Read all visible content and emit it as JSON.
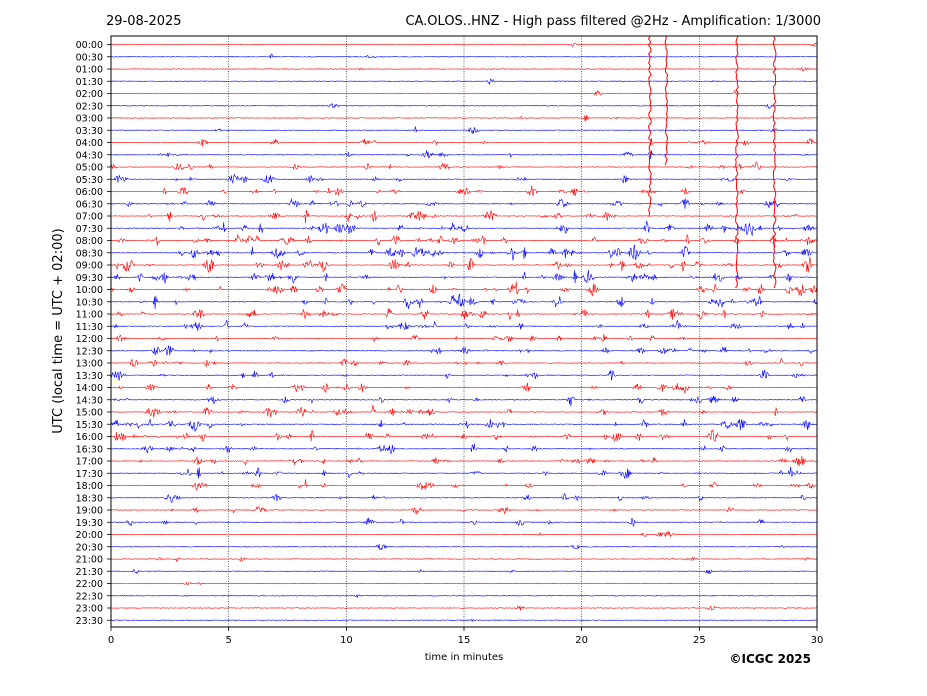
{
  "header": {
    "date": "29-08-2025",
    "title": "CA.OLOS..HNZ - High pass filtered @2Hz - Amplification: 1/3000"
  },
  "footer": {
    "copyright": "©ICGC 2025"
  },
  "colors": {
    "trace_a": "#ff0000",
    "trace_b": "#0000ff",
    "axis": "#000000",
    "grid": "#000000"
  },
  "chart_data": {
    "type": "line",
    "title": "CA.OLOS..HNZ - High pass filtered @2Hz - Amplification: 1/3000",
    "xlabel": "time in minutes",
    "ylabel": "UTC (local time = UTC + 02:00)",
    "xlim": [
      0,
      30
    ],
    "x_ticks": [
      0,
      5,
      10,
      15,
      20,
      25,
      30
    ],
    "grid": "vertical dotted at 5-minute intervals",
    "row_labels": [
      "00:00",
      "00:30",
      "01:00",
      "01:30",
      "02:00",
      "02:30",
      "03:00",
      "03:30",
      "04:00",
      "04:30",
      "05:00",
      "05:30",
      "06:00",
      "06:30",
      "07:00",
      "07:30",
      "08:00",
      "08:30",
      "09:00",
      "09:30",
      "10:00",
      "10:30",
      "11:00",
      "11:30",
      "12:00",
      "12:30",
      "13:00",
      "13:30",
      "14:00",
      "14:30",
      "15:00",
      "15:30",
      "16:00",
      "16:30",
      "17:00",
      "17:30",
      "18:00",
      "18:30",
      "19:00",
      "19:30",
      "20:00",
      "20:30",
      "21:00",
      "21:30",
      "22:00",
      "22:30",
      "23:00",
      "23:30"
    ],
    "row_colors": "alternating red (even rows) and blue (odd rows)",
    "activity_level": [
      0.05,
      0.05,
      0.04,
      0.04,
      0.04,
      0.05,
      0.1,
      0.15,
      0.3,
      0.35,
      0.35,
      0.45,
      0.55,
      0.6,
      0.7,
      0.9,
      0.9,
      0.85,
      0.9,
      0.8,
      0.75,
      0.85,
      0.7,
      0.55,
      0.45,
      0.55,
      0.5,
      0.45,
      0.45,
      0.5,
      0.6,
      0.75,
      0.65,
      0.6,
      0.55,
      0.6,
      0.45,
      0.4,
      0.35,
      0.3,
      0.2,
      0.08,
      0.15,
      0.1,
      0.05,
      0.05,
      0.05,
      0.03
    ],
    "large_events": [
      {
        "x_min": 22.9,
        "from_row": "00:00",
        "to_row": "07:00",
        "color": "red"
      },
      {
        "x_min": 23.6,
        "from_row": "00:00",
        "to_row": "05:00",
        "color": "red"
      },
      {
        "x_min": 26.6,
        "from_row": "00:00",
        "to_row": "10:00",
        "color": "red"
      },
      {
        "x_min": 28.2,
        "from_row": "00:00",
        "to_row": "10:00",
        "color": "red"
      }
    ]
  }
}
